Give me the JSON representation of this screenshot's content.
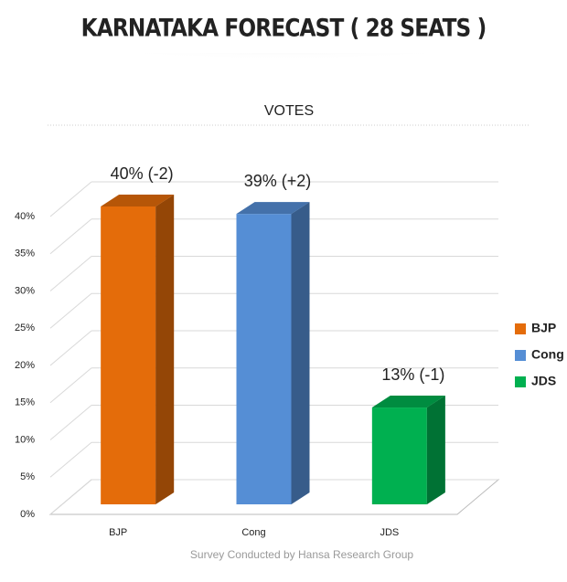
{
  "chart_data": {
    "type": "bar3d",
    "title": "KARNATAKA FORECAST ( 28 SEATS )",
    "subtitle": "VOTES",
    "footer": "Survey Conducted by Hansa Research Group",
    "categories": [
      "BJP",
      "Cong",
      "JDS"
    ],
    "values": [
      40,
      39,
      13
    ],
    "value_labels": [
      "40% (-2)",
      "39% (+2)",
      "13% (-1)"
    ],
    "colors": [
      "#e46c0a",
      "#558ed5",
      "#00b050"
    ],
    "ylim": [
      0,
      40
    ],
    "yticks": [
      {
        "value": 0,
        "label": "0%"
      },
      {
        "value": 5,
        "label": "5%"
      },
      {
        "value": 10,
        "label": "10%"
      },
      {
        "value": 15,
        "label": "15%"
      },
      {
        "value": 20,
        "label": "20%"
      },
      {
        "value": 25,
        "label": "25%"
      },
      {
        "value": 30,
        "label": "30%"
      },
      {
        "value": 35,
        "label": "35%"
      },
      {
        "value": 40,
        "label": "40%"
      }
    ],
    "grid": true,
    "legend": "right"
  }
}
